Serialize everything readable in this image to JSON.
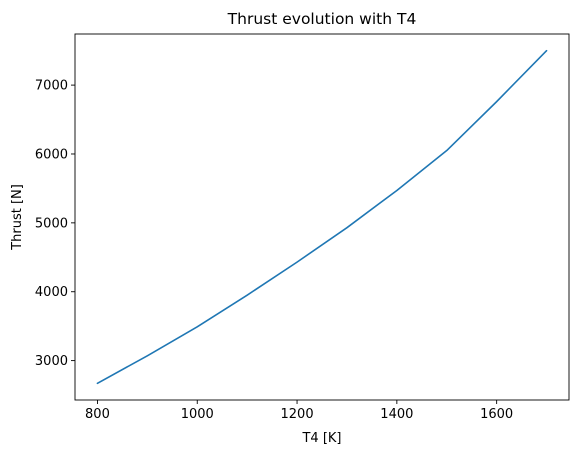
{
  "chart_data": {
    "type": "line",
    "title": "Thrust evolution with T4",
    "xlabel": "T4 [K]",
    "ylabel": "Thrust [N]",
    "xlim": [
      755,
      1745
    ],
    "ylim": [
      2428,
      7742
    ],
    "xticks": [
      800,
      1000,
      1200,
      1400,
      1600
    ],
    "yticks": [
      3000,
      4000,
      5000,
      6000,
      7000
    ],
    "grid": false,
    "series": [
      {
        "color": "#1f77b4",
        "x": [
          800,
          900,
          1000,
          1100,
          1200,
          1300,
          1400,
          1500,
          1600,
          1700
        ],
        "y": [
          2670,
          3070,
          3490,
          3950,
          4430,
          4930,
          5470,
          6050,
          6760,
          7500
        ]
      }
    ]
  }
}
